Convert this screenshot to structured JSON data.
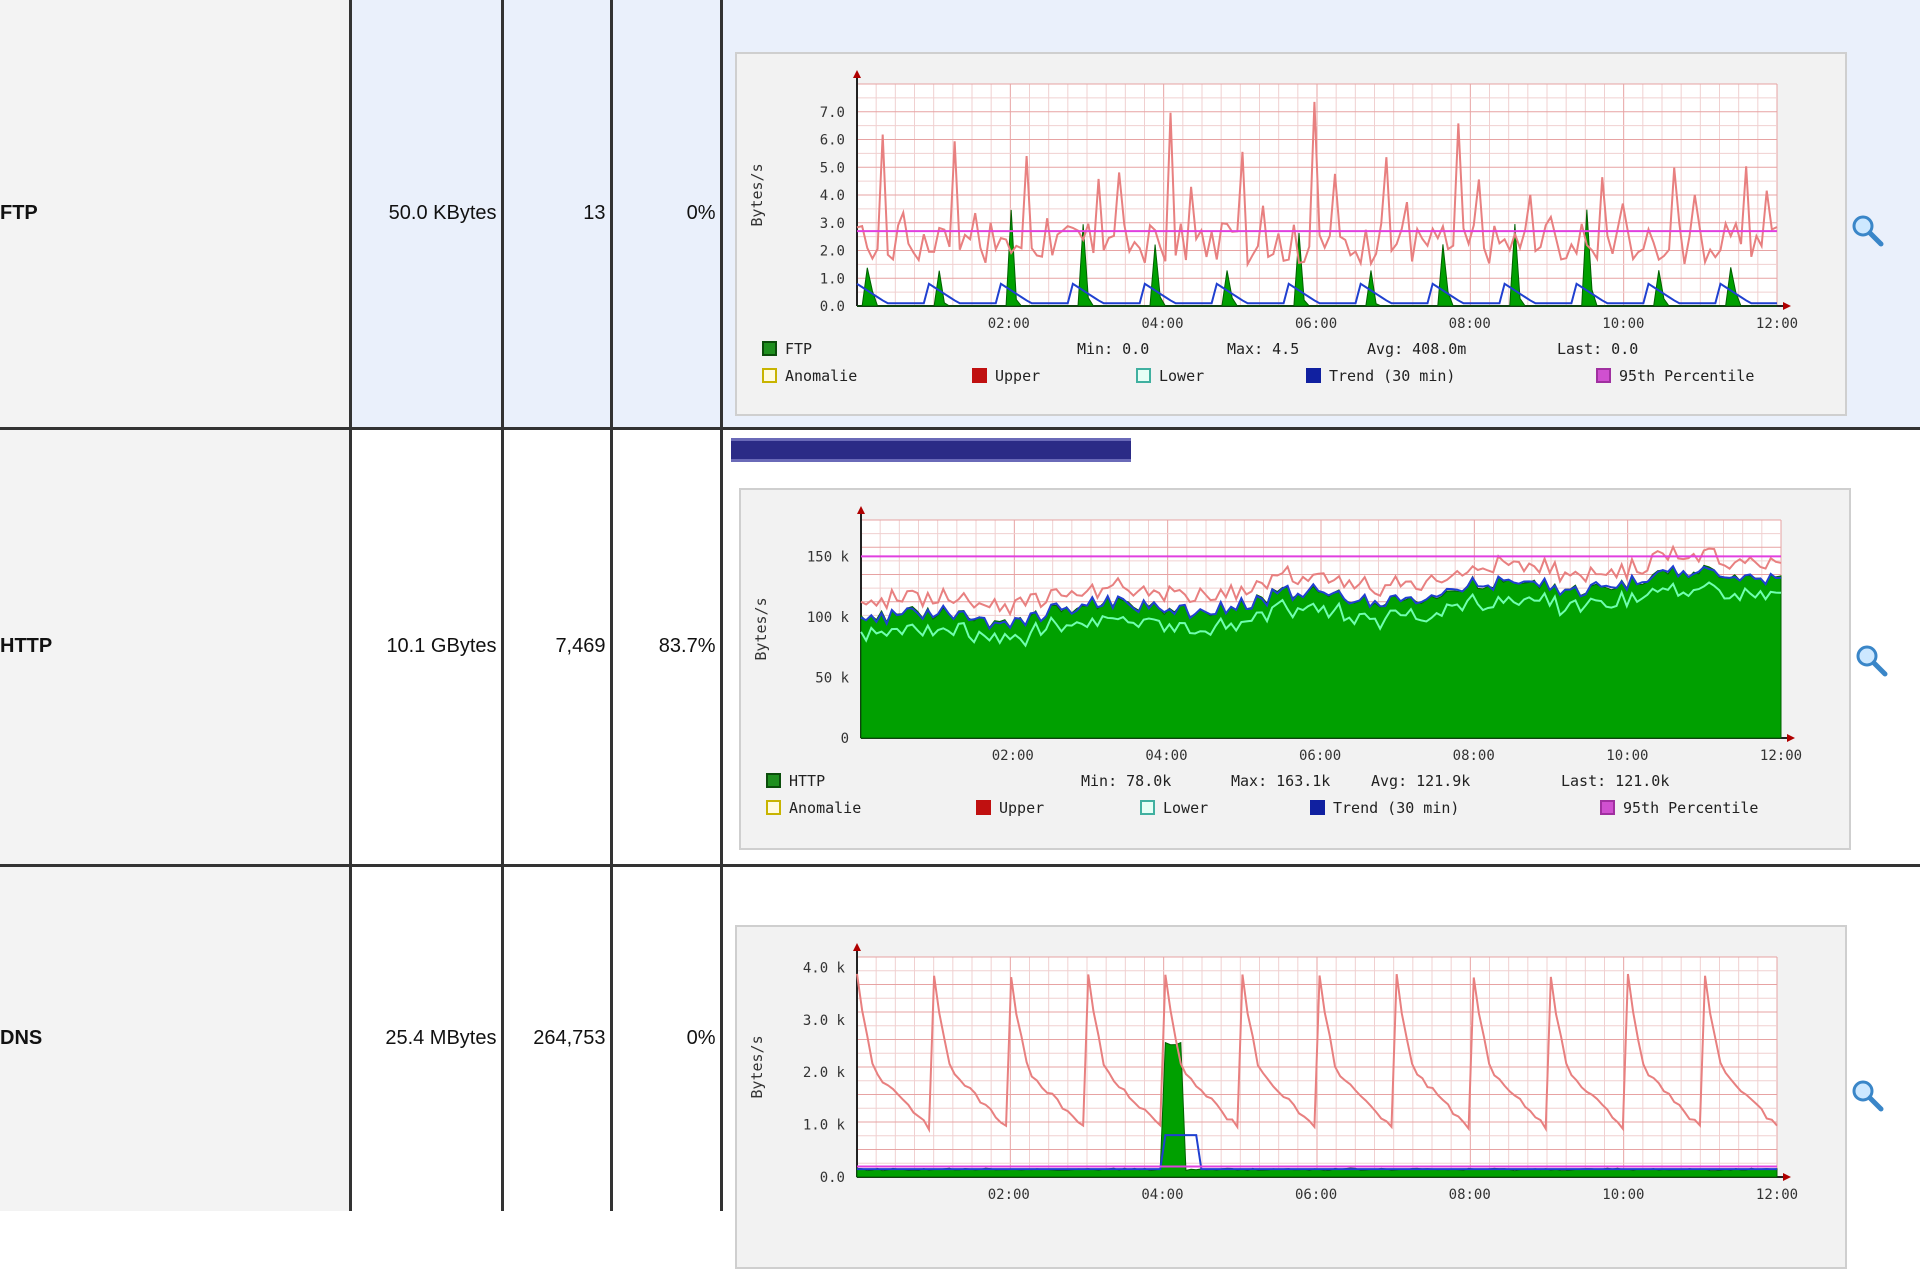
{
  "rows": [
    {
      "key": "ftp",
      "protocol": "FTP",
      "bytes": "50.0 KBytes",
      "packets": "13",
      "percent": "0%",
      "usage_fraction": 0,
      "graph": {
        "ylabel": "Bytes/s",
        "yticks": [
          "7.0",
          "6.0",
          "5.0",
          "4.0",
          "3.0",
          "2.0",
          "1.0",
          "0.0"
        ],
        "xticks": [
          "02:00",
          "04:00",
          "06:00",
          "08:00",
          "10:00",
          "12:00"
        ],
        "ymax": 8,
        "percentile95": 2.7,
        "legend_series": "FTP",
        "stats": {
          "min": "Min: 0.0",
          "max": "Max: 4.5",
          "avg": "Avg: 408.0m",
          "last": "Last: 0.0"
        }
      }
    },
    {
      "key": "http",
      "protocol": "HTTP",
      "bytes": "10.1 GBytes",
      "packets": "7,469",
      "percent": "83.7%",
      "usage_fraction": 0.837,
      "graph": {
        "ylabel": "Bytes/s",
        "yticks": [
          "150 k",
          "100 k",
          "50 k",
          "0"
        ],
        "xticks": [
          "02:00",
          "04:00",
          "06:00",
          "08:00",
          "10:00",
          "12:00"
        ],
        "ymax": 180,
        "percentile95": 150,
        "legend_series": "HTTP",
        "stats": {
          "min": "Min: 78.0k",
          "max": "Max: 163.1k",
          "avg": "Avg: 121.9k",
          "last": "Last: 121.0k"
        }
      }
    },
    {
      "key": "dns",
      "protocol": "DNS",
      "bytes": "25.4 MBytes",
      "packets": "264,753",
      "percent": "0%",
      "usage_fraction": 0,
      "graph": {
        "ylabel": "Bytes/s",
        "yticks": [
          "4.0 k",
          "3.0 k",
          "2.0 k",
          "1.0 k",
          "0.0"
        ],
        "xticks": [
          "02:00",
          "04:00",
          "06:00",
          "08:00",
          "10:00",
          "12:00"
        ],
        "ymax": 4.2,
        "percentile95": 0.2,
        "legend_series": "",
        "stats": {
          "min": "",
          "max": "",
          "avg": "",
          "last": ""
        }
      }
    }
  ],
  "legend": {
    "anomalie": "Anomalie",
    "upper": "Upper",
    "lower": "Lower",
    "trend": "Trend (30 min)",
    "percentile": "95th Percentile"
  },
  "colors": {
    "series": "#00a000",
    "upper": "#e88080",
    "lower": "#70ffb0",
    "trend": "#2040d0",
    "percentile": "#e040e0",
    "usage_bar": "#2b2b86"
  }
}
